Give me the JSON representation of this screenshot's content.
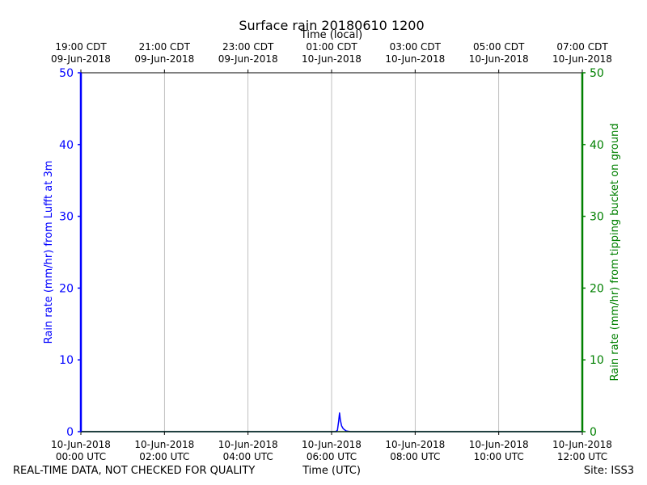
{
  "chart_data": {
    "type": "line",
    "title": "Surface rain 20180610 1200",
    "xlabel": "Time (UTC)",
    "x2label": "Time (local)",
    "ylabel": "Rain rate (mm/hr) from Lufft at 3m",
    "y2label": "Rain rate (mm/hr) from tipping bucket on ground",
    "ylim": [
      0,
      50
    ],
    "y2lim": [
      0,
      50
    ],
    "xlim_hours": [
      0,
      12
    ],
    "grid": "vertical",
    "yticks": [
      "0",
      "10",
      "20",
      "30",
      "40",
      "50"
    ],
    "y2ticks": [
      "0",
      "10",
      "20",
      "30",
      "40",
      "50"
    ],
    "xticks": [
      {
        "hour": 0,
        "date": "10-Jun-2018",
        "time": "00:00 UTC"
      },
      {
        "hour": 2,
        "date": "10-Jun-2018",
        "time": "02:00 UTC"
      },
      {
        "hour": 4,
        "date": "10-Jun-2018",
        "time": "04:00 UTC"
      },
      {
        "hour": 6,
        "date": "10-Jun-2018",
        "time": "06:00 UTC"
      },
      {
        "hour": 8,
        "date": "10-Jun-2018",
        "time": "08:00 UTC"
      },
      {
        "hour": 10,
        "date": "10-Jun-2018",
        "time": "10:00 UTC"
      },
      {
        "hour": 12,
        "date": "10-Jun-2018",
        "time": "12:00 UTC"
      }
    ],
    "x2ticks": [
      {
        "hour": 0,
        "time": "19:00 CDT",
        "date": "09-Jun-2018"
      },
      {
        "hour": 2,
        "time": "21:00 CDT",
        "date": "09-Jun-2018"
      },
      {
        "hour": 4,
        "time": "23:00 CDT",
        "date": "09-Jun-2018"
      },
      {
        "hour": 6,
        "time": "01:00 CDT",
        "date": "10-Jun-2018"
      },
      {
        "hour": 8,
        "time": "03:00 CDT",
        "date": "10-Jun-2018"
      },
      {
        "hour": 10,
        "time": "05:00 CDT",
        "date": "10-Jun-2018"
      },
      {
        "hour": 12,
        "time": "07:00 CDT",
        "date": "10-Jun-2018"
      }
    ],
    "series": [
      {
        "axis": "left",
        "color": "#0000ff",
        "x_hours": [
          0,
          6.1,
          6.14,
          6.17,
          6.19,
          6.21,
          6.24,
          6.28,
          6.35,
          6.45,
          12
        ],
        "values": [
          0,
          0,
          0.2,
          1.5,
          2.6,
          1.6,
          0.8,
          0.4,
          0.1,
          0,
          0
        ]
      },
      {
        "axis": "right",
        "color": "#008000",
        "x_hours": [
          0,
          12
        ],
        "values": [
          0,
          0
        ]
      }
    ]
  },
  "footer": {
    "left": "REAL-TIME DATA, NOT CHECKED FOR QUALITY",
    "center": "Time (UTC)",
    "right": "Site: ISS3"
  },
  "colors": {
    "left_axis": "#0000ff",
    "right_axis": "#008000",
    "grid": "#b0b0b0"
  }
}
